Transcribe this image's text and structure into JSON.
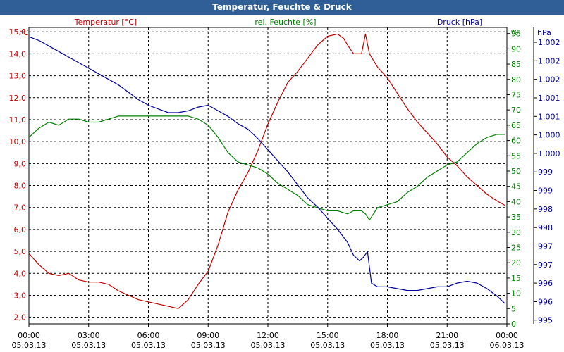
{
  "window": {
    "title": "Temperatur, Feuchte & Druck"
  },
  "colors": {
    "temperature": "#c00000",
    "humidity": "#008000",
    "pressure": "#000099",
    "titlebar": "#2f5f96"
  },
  "chart_data": {
    "type": "line",
    "title": "Temperatur, Feuchte & Druck",
    "grid": true,
    "x": {
      "range_hours": [
        0,
        24
      ],
      "tick_hours": [
        0,
        3,
        6,
        9,
        12,
        15,
        18,
        21,
        24
      ],
      "tick_labels_time": [
        "00:00",
        "03:00",
        "06:00",
        "09:00",
        "12:00",
        "15:00",
        "18:00",
        "21:00",
        "00:00"
      ],
      "tick_labels_date": [
        "05.03.13",
        "05.03.13",
        "05.03.13",
        "05.03.13",
        "05.03.13",
        "05.03.13",
        "05.03.13",
        "05.03.13",
        "06.03.13"
      ]
    },
    "axes": {
      "temperature": {
        "label": "Temperatur [°C]",
        "unit": "°C",
        "range": [
          1.7,
          15.2
        ],
        "ticks": [
          2.0,
          3.0,
          4.0,
          5.0,
          6.0,
          7.0,
          8.0,
          9.0,
          10.0,
          11.0,
          12.0,
          13.0,
          14.0,
          15.0
        ],
        "tick_labels": [
          "2,0",
          "3,0",
          "4,0",
          "5,0",
          "6,0",
          "7,0",
          "8,0",
          "9,0",
          "10,0",
          "11,0",
          "12,0",
          "13,0",
          "14,0",
          "15,0"
        ]
      },
      "humidity": {
        "label": "rel. Feuchte [%]",
        "unit": "%",
        "range": [
          0,
          97
        ],
        "ticks": [
          0,
          5,
          10,
          15,
          20,
          25,
          30,
          35,
          40,
          45,
          50,
          55,
          60,
          65,
          70,
          75,
          80,
          85,
          90,
          95
        ],
        "tick_labels": [
          "0",
          "5",
          "10",
          "15",
          "20",
          "25",
          "30",
          "35",
          "40",
          "45",
          "50",
          "55",
          "60",
          "65",
          "70",
          "75",
          "80",
          "85",
          "90",
          "95"
        ]
      },
      "pressure": {
        "label": "Druck [hPa]",
        "unit": "hPa",
        "range": [
          994.9,
          1002.9
        ],
        "ticks": [
          995.0,
          995.5,
          996.0,
          996.5,
          997.0,
          997.5,
          998.0,
          998.5,
          999.0,
          999.5,
          1000.0,
          1000.5,
          1001.0,
          1001.5,
          1002.0,
          1002.5
        ],
        "tick_labels": [
          "995",
          "996",
          "996",
          "997",
          "997",
          "998",
          "998",
          "999",
          "999",
          "1.000",
          "1.000",
          "1.001",
          "1.001",
          "1.002",
          "1.002",
          "1.002"
        ]
      }
    },
    "series": [
      {
        "name": "Temperatur [°C]",
        "axis": "temperature",
        "x": [
          0,
          0.5,
          1.0,
          1.5,
          2.0,
          2.5,
          3.0,
          3.5,
          4.0,
          4.5,
          5.0,
          5.5,
          6.0,
          6.5,
          7.0,
          7.5,
          8.0,
          8.5,
          9.0,
          9.5,
          10.0,
          10.5,
          11.0,
          11.5,
          12.0,
          12.5,
          13.0,
          13.5,
          14.0,
          14.5,
          15.0,
          15.5,
          15.8,
          16.0,
          16.3,
          16.7,
          16.9,
          17.1,
          17.5,
          18.0,
          18.5,
          19.0,
          19.5,
          20.0,
          20.5,
          21.0,
          21.5,
          22.0,
          22.5,
          23.0,
          23.5,
          23.9
        ],
        "values": [
          4.9,
          4.4,
          4.0,
          3.9,
          4.0,
          3.7,
          3.6,
          3.6,
          3.5,
          3.2,
          3.0,
          2.8,
          2.7,
          2.6,
          2.5,
          2.4,
          2.8,
          3.5,
          4.1,
          5.3,
          6.8,
          7.8,
          8.6,
          9.6,
          10.8,
          11.8,
          12.7,
          13.2,
          13.8,
          14.4,
          14.8,
          14.9,
          14.7,
          14.4,
          14.0,
          14.0,
          14.9,
          14.0,
          13.4,
          12.9,
          12.2,
          11.5,
          10.9,
          10.4,
          9.9,
          9.3,
          8.9,
          8.4,
          8.0,
          7.6,
          7.3,
          7.1
        ]
      },
      {
        "name": "rel. Feuchte [%]",
        "axis": "humidity",
        "x": [
          0,
          0.5,
          1.0,
          1.5,
          2.0,
          2.5,
          3.0,
          3.5,
          4.0,
          4.5,
          5.0,
          5.5,
          6.0,
          6.5,
          7.0,
          7.5,
          8.0,
          8.5,
          9.0,
          9.5,
          10.0,
          10.5,
          11.0,
          11.5,
          12.0,
          12.5,
          13.0,
          13.5,
          14.0,
          14.5,
          15.0,
          15.5,
          16.0,
          16.3,
          16.7,
          16.9,
          17.1,
          17.5,
          18.0,
          18.5,
          19.0,
          19.5,
          20.0,
          20.5,
          21.0,
          21.5,
          22.0,
          22.5,
          23.0,
          23.5,
          23.9
        ],
        "values": [
          61,
          64,
          66,
          65,
          67,
          67,
          66,
          66,
          67,
          68,
          68,
          68,
          68,
          68,
          68,
          68,
          68,
          67,
          65,
          61,
          56,
          53,
          52,
          51,
          49,
          46,
          44,
          42,
          39,
          38,
          37,
          37,
          36,
          37,
          37,
          36,
          34,
          38,
          39,
          40,
          43,
          45,
          48,
          50,
          52,
          53,
          56,
          59,
          61,
          62,
          62
        ]
      },
      {
        "name": "Druck [hPa]",
        "axis": "pressure",
        "x": [
          0,
          0.5,
          1.0,
          1.5,
          2.0,
          2.5,
          3.0,
          3.5,
          4.0,
          4.5,
          5.0,
          5.5,
          6.0,
          6.5,
          7.0,
          7.5,
          8.0,
          8.5,
          9.0,
          9.5,
          10.0,
          10.5,
          11.0,
          11.5,
          12.0,
          12.5,
          13.0,
          13.5,
          14.0,
          14.5,
          15.0,
          15.5,
          16.0,
          16.3,
          16.6,
          16.8,
          17.0,
          17.2,
          17.5,
          18.0,
          18.5,
          19.0,
          19.5,
          20.0,
          20.5,
          21.0,
          21.5,
          22.0,
          22.5,
          23.0,
          23.5,
          23.9
        ],
        "values": [
          1002.65,
          1002.55,
          1002.4,
          1002.25,
          1002.1,
          1001.95,
          1001.8,
          1001.65,
          1001.5,
          1001.35,
          1001.15,
          1000.95,
          1000.8,
          1000.7,
          1000.6,
          1000.6,
          1000.65,
          1000.75,
          1000.8,
          1000.65,
          1000.5,
          1000.3,
          1000.15,
          999.9,
          999.6,
          999.3,
          999.0,
          998.65,
          998.3,
          998.05,
          997.75,
          997.45,
          997.1,
          996.75,
          996.6,
          996.7,
          996.85,
          996.0,
          995.9,
          995.9,
          995.85,
          995.8,
          995.8,
          995.85,
          995.9,
          995.9,
          996.0,
          996.05,
          996.0,
          995.85,
          995.65,
          995.45
        ]
      }
    ]
  }
}
